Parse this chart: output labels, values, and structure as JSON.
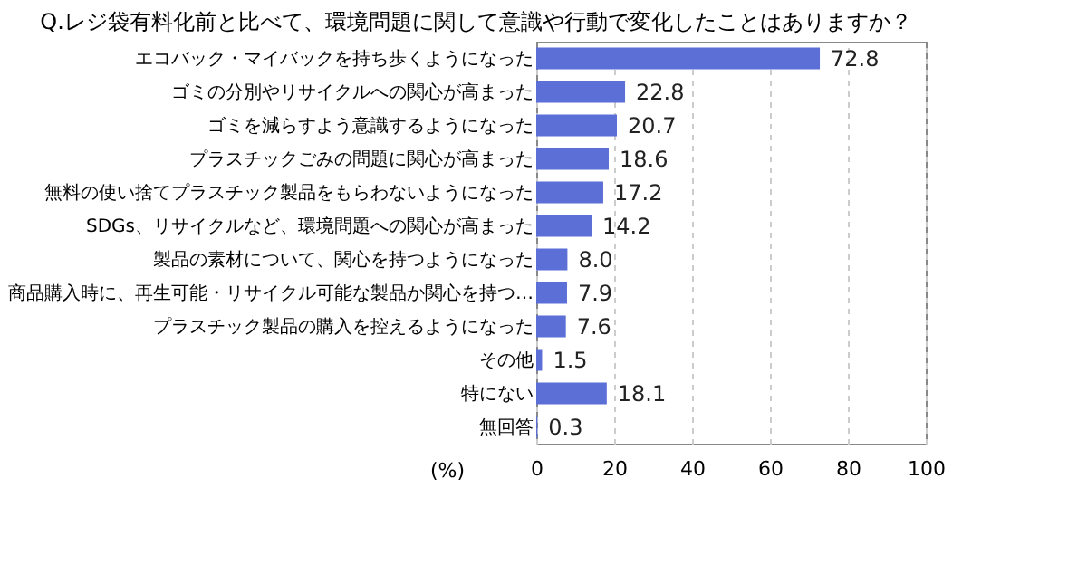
{
  "chart_data": {
    "type": "bar",
    "orientation": "horizontal",
    "title": "Q.レジ袋有料化前と比べて、環境問題に関して意識や行動で変化したことはありますか？",
    "xlabel": "(%)",
    "categories": [
      "エコバック・マイバックを持ち歩くようになった",
      "ゴミの分別やリサイクルへの関心が高まった",
      "ゴミを減らすよう意識するようになった",
      "プラスチックごみの問題に関心が高まった",
      "無料の使い捨てプラスチック製品をもらわないようになった",
      "SDGs、リサイクルなど、環境問題への関心が高まった",
      "製品の素材について、関心を持つようになった",
      "商品購入時に、再生可能・リサイクル可能な製品か関心を持つ…",
      "プラスチック製品の購入を控えるようになった",
      "その他",
      "特にない",
      "無回答"
    ],
    "values": [
      72.8,
      22.8,
      20.7,
      18.6,
      17.2,
      14.2,
      8.0,
      7.9,
      7.6,
      1.5,
      18.1,
      0.3
    ],
    "color": "#5b6fd6",
    "xlim": [
      0,
      100
    ],
    "xticks": [
      0,
      20,
      40,
      60,
      80,
      100
    ],
    "grid": "x",
    "value_labels": [
      "72.8",
      "22.8",
      "20.7",
      "18.6",
      "17.2",
      "14.2",
      "8.0",
      "7.9",
      "7.6",
      "1.5",
      "18.1",
      "0.3"
    ]
  }
}
